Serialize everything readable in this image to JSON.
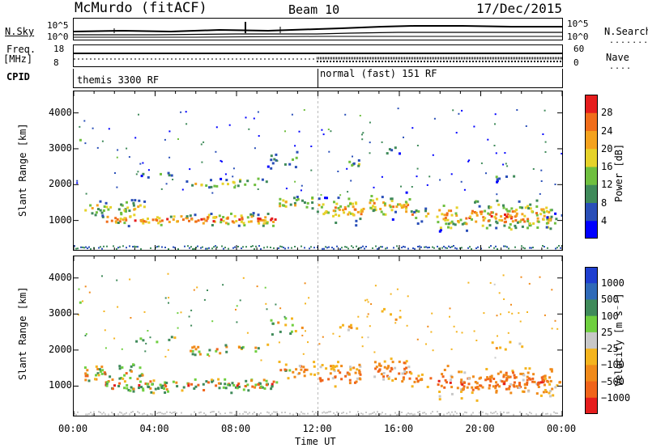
{
  "header": {
    "station": "McMurdo (fitACF)",
    "beam": "Beam 10",
    "date": "17/Dec/2015"
  },
  "sky_panel": {
    "left_label": "N.Sky",
    "left_ticks": [
      "10^5",
      "10^0"
    ],
    "right_ticks": [
      "10^5",
      "10^0"
    ],
    "right_label": "N.Search"
  },
  "freq_panel": {
    "left_label_1": "Freq.",
    "left_label_2": "[MHz]",
    "left_ticks": [
      "18",
      "8"
    ],
    "right_ticks": [
      "60",
      "0"
    ],
    "right_label": "Nave"
  },
  "cpid_panel": {
    "label": "CPID",
    "segments": [
      {
        "name": "themis 3300 RF",
        "start_hour": 0,
        "end_hour": 12
      },
      {
        "name": "normal (fast) 151 RF",
        "start_hour": 12,
        "end_hour": 24
      }
    ]
  },
  "chart_data": [
    {
      "type": "heatmap",
      "title": "",
      "ylabel": "Slant Range [km]",
      "xlabel": "Time UT",
      "xlim": [
        0,
        24
      ],
      "ylim": [
        180,
        4600
      ],
      "x_ticks": [
        "00:00",
        "04:00",
        "08:00",
        "12:00",
        "16:00",
        "20:00",
        "00:00"
      ],
      "y_ticks": [
        1000,
        2000,
        3000,
        4000
      ],
      "colorbar": {
        "label": "Power [dB]",
        "ticks": [
          "4",
          "8",
          "12",
          "16",
          "20",
          "24",
          "28"
        ],
        "colors": [
          "#0000ff",
          "#2a4fb8",
          "#3f8a5a",
          "#6fbf3f",
          "#e6d22a",
          "#f4a21e",
          "#f06d1a",
          "#e51d1d"
        ]
      }
    },
    {
      "type": "heatmap",
      "title": "",
      "ylabel": "Slant Range [km]",
      "xlabel": "Time UT",
      "xlim": [
        0,
        24
      ],
      "ylim": [
        180,
        4600
      ],
      "x_ticks": [
        "00:00",
        "04:00",
        "08:00",
        "12:00",
        "16:00",
        "20:00",
        "00:00"
      ],
      "y_ticks": [
        1000,
        2000,
        3000,
        4000
      ],
      "colorbar": {
        "label": "Velocity [m s⁻¹]",
        "ticks": [
          "1000",
          "500",
          "100",
          "25",
          "−25",
          "−100",
          "−500",
          "−1000"
        ],
        "colors": [
          "#1f3fd0",
          "#2f6ab8",
          "#3f8a5a",
          "#6fcf3f",
          "#c8c8c8",
          "#f4b41e",
          "#f08a1a",
          "#f0641a",
          "#e51d1d"
        ]
      }
    }
  ],
  "time_axis": {
    "label": "Time UT",
    "ticks": [
      "00:00",
      "04:00",
      "08:00",
      "12:00",
      "16:00",
      "20:00",
      "00:00"
    ]
  }
}
